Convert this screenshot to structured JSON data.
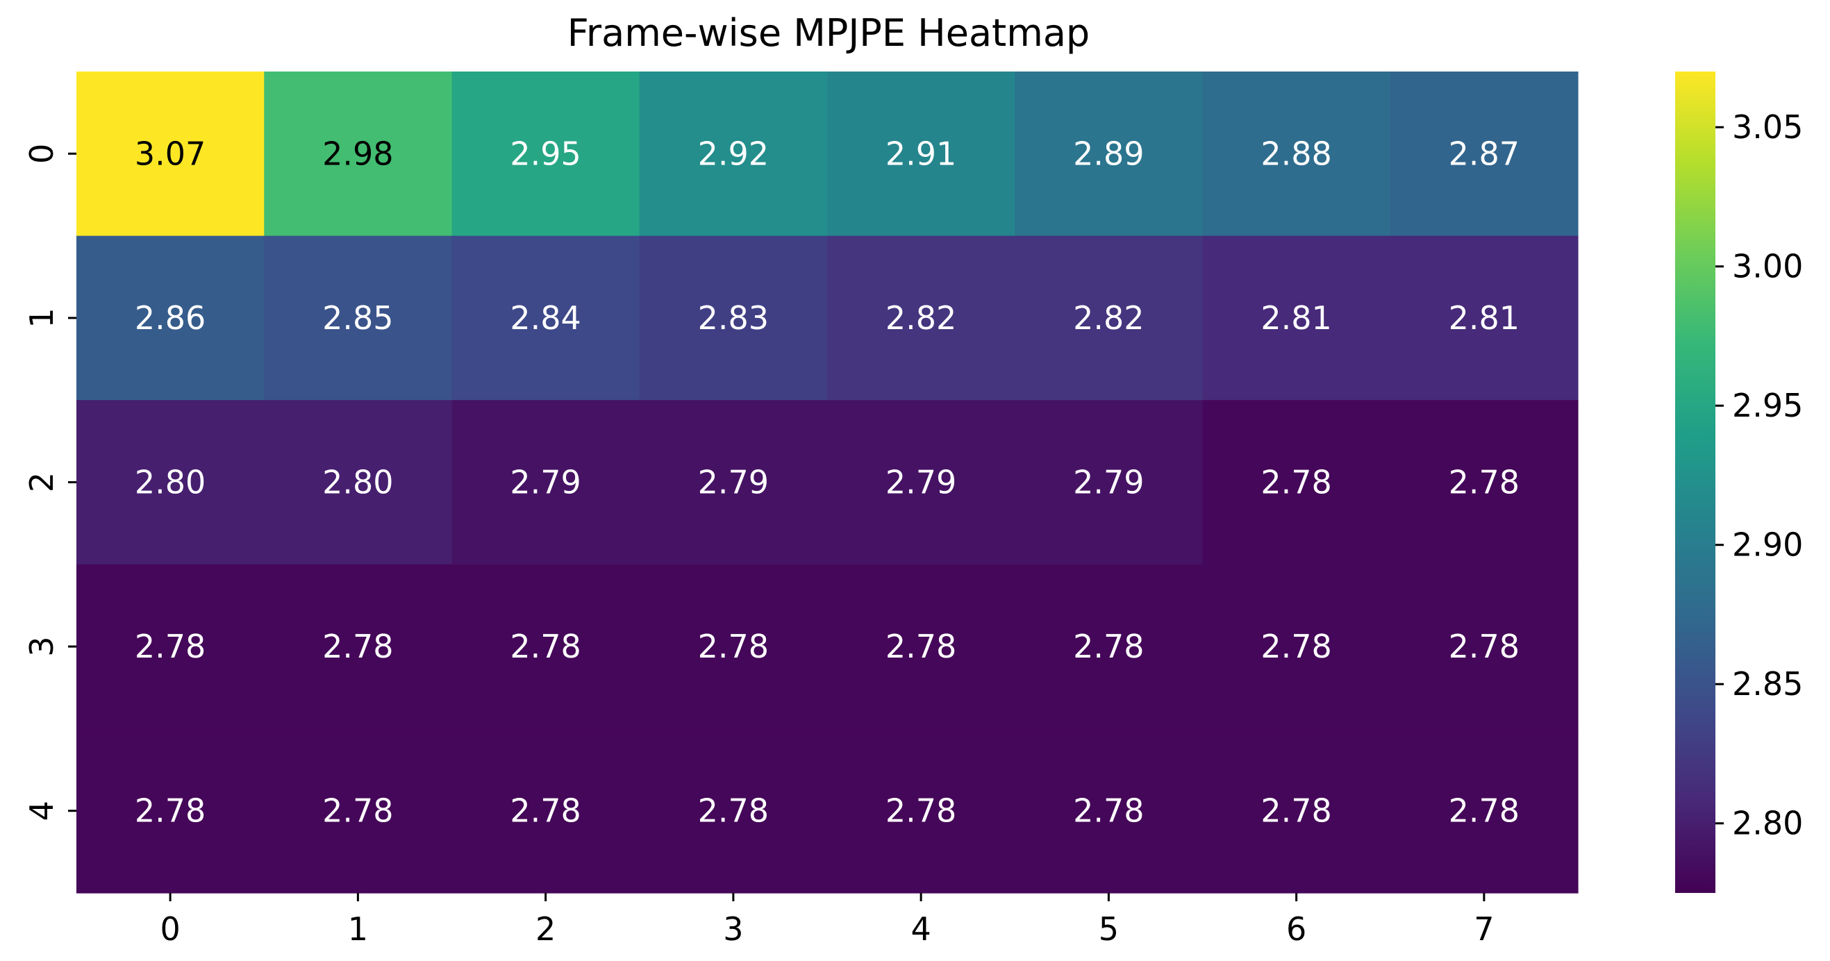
{
  "chart_data": {
    "type": "heatmap",
    "title": "Frame-wise MPJPE Heatmap",
    "xlabel": "",
    "ylabel": "",
    "x_categories": [
      "0",
      "1",
      "2",
      "3",
      "4",
      "5",
      "6",
      "7"
    ],
    "y_categories": [
      "0",
      "1",
      "2",
      "3",
      "4"
    ],
    "values": [
      [
        3.07,
        2.98,
        2.95,
        2.92,
        2.91,
        2.89,
        2.88,
        2.87
      ],
      [
        2.86,
        2.85,
        2.84,
        2.83,
        2.82,
        2.82,
        2.81,
        2.81
      ],
      [
        2.8,
        2.8,
        2.79,
        2.79,
        2.79,
        2.79,
        2.78,
        2.78
      ],
      [
        2.78,
        2.78,
        2.78,
        2.78,
        2.78,
        2.78,
        2.78,
        2.78
      ],
      [
        2.78,
        2.78,
        2.78,
        2.78,
        2.78,
        2.78,
        2.78,
        2.78
      ]
    ],
    "value_format": "2 decimals",
    "colormap": "viridis",
    "colorbar": {
      "range": [
        2.775,
        3.07
      ],
      "ticks": [
        2.8,
        2.85,
        2.9,
        2.95,
        3.0,
        3.05
      ],
      "tick_labels": [
        "2.80",
        "2.85",
        "2.90",
        "2.95",
        "3.00",
        "3.05"
      ]
    },
    "grid": false,
    "colors": {
      "annotation_dark": "#000000",
      "annotation_light": "#ffffff"
    }
  }
}
